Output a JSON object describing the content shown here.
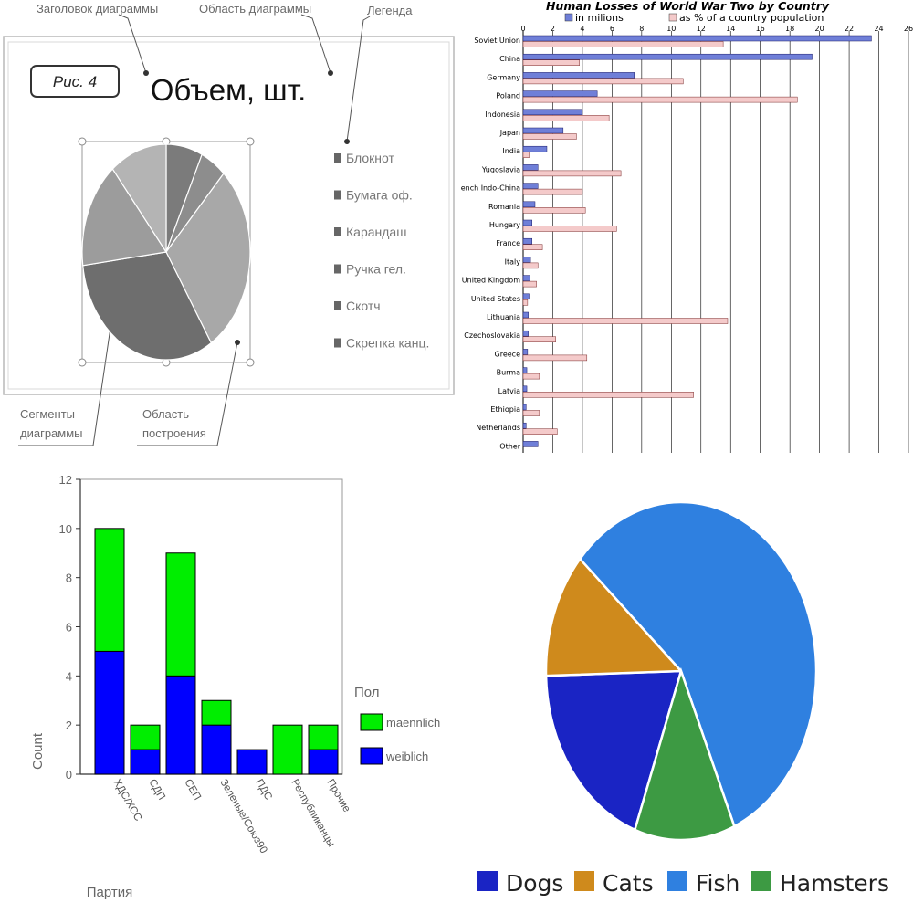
{
  "panels": {
    "top_left": {
      "annotations": {
        "chart_title_label": "Заголовок диаграммы",
        "chart_area_label": "Область диаграммы",
        "legend_label": "Легенда",
        "segments_label_1": "Сегменты",
        "segments_label_2": "диаграммы",
        "plot_area_label_1": "Область",
        "plot_area_label_2": "построения"
      },
      "figure_label": "Рис. 4"
    }
  },
  "chart_data": [
    {
      "type": "pie",
      "title": "Объем, шт.",
      "categories": [
        "Блокнот",
        "Бумага оф.",
        "Карандаш",
        "Ручка гел.",
        "Скотч",
        "Скрепка канц."
      ],
      "values": [
        7,
        5,
        29,
        32,
        16,
        11
      ],
      "colors": [
        "#7b7b7b",
        "#8d8d8d",
        "#a8a8a8",
        "#6e6e6e",
        "#9c9c9c",
        "#b4b4b4"
      ],
      "legend": "right"
    },
    {
      "type": "bar",
      "orientation": "horizontal",
      "title": "Human Losses of World War Two by Country",
      "categories": [
        "Soviet Union",
        "China",
        "Germany",
        "Poland",
        "Indonesia",
        "Japan",
        "India",
        "Yugoslavia",
        "French Indo-China",
        "Romania",
        "Hungary",
        "France",
        "Italy",
        "United Kingdom",
        "United States",
        "Lithuania",
        "Czechoslovakia",
        "Greece",
        "Burma",
        "Latvia",
        "Ethiopia",
        "Netherlands",
        "Other"
      ],
      "series": [
        {
          "name": "in milions",
          "color": "#6f7fd8",
          "values": [
            23.5,
            19.5,
            7.5,
            5.0,
            4.0,
            2.7,
            1.6,
            1.0,
            1.0,
            0.8,
            0.6,
            0.6,
            0.5,
            0.45,
            0.4,
            0.35,
            0.35,
            0.3,
            0.25,
            0.25,
            0.2,
            0.2,
            1.0
          ]
        },
        {
          "name": "as % of a country population",
          "color": "#f4caca",
          "values": [
            13.5,
            3.8,
            10.8,
            18.5,
            5.8,
            3.6,
            0.4,
            6.6,
            4.0,
            4.2,
            6.3,
            1.3,
            1.0,
            0.9,
            0.3,
            13.8,
            2.2,
            4.3,
            1.1,
            11.5,
            1.1,
            2.3,
            0
          ]
        }
      ],
      "xticks": [
        0,
        2,
        4,
        6,
        8,
        10,
        12,
        14,
        16,
        18,
        20,
        22,
        24,
        26
      ],
      "xlim": [
        0,
        26
      ],
      "grid": true,
      "legend": "top"
    },
    {
      "type": "bar",
      "stacked": true,
      "categories": [
        "ХДС/ХСС",
        "СДП",
        "СЕП",
        "Зеленые/Союз90",
        "ПДС",
        "Республиканцы",
        "Прочие"
      ],
      "series": [
        {
          "name": "weiblich",
          "color": "#0000ff",
          "values": [
            5,
            1,
            4,
            2,
            1,
            0,
            1
          ]
        },
        {
          "name": "maennlich",
          "color": "#00ee00",
          "values": [
            5,
            1,
            5,
            1,
            0,
            2,
            1
          ]
        }
      ],
      "ylim": [
        0,
        12
      ],
      "yticks": [
        0,
        2,
        4,
        6,
        8,
        10,
        12
      ],
      "xlabel": "Партия",
      "ylabel": "Count",
      "legend_title": "Пол",
      "legend": "right"
    },
    {
      "type": "pie",
      "categories": [
        "Dogs",
        "Cats",
        "Fish",
        "Hamsters"
      ],
      "values": [
        19,
        12,
        57,
        12
      ],
      "colors": [
        "#1a24c4",
        "#cf8a1c",
        "#2f80e0",
        "#3d9a43"
      ],
      "legend": "bottom"
    }
  ]
}
